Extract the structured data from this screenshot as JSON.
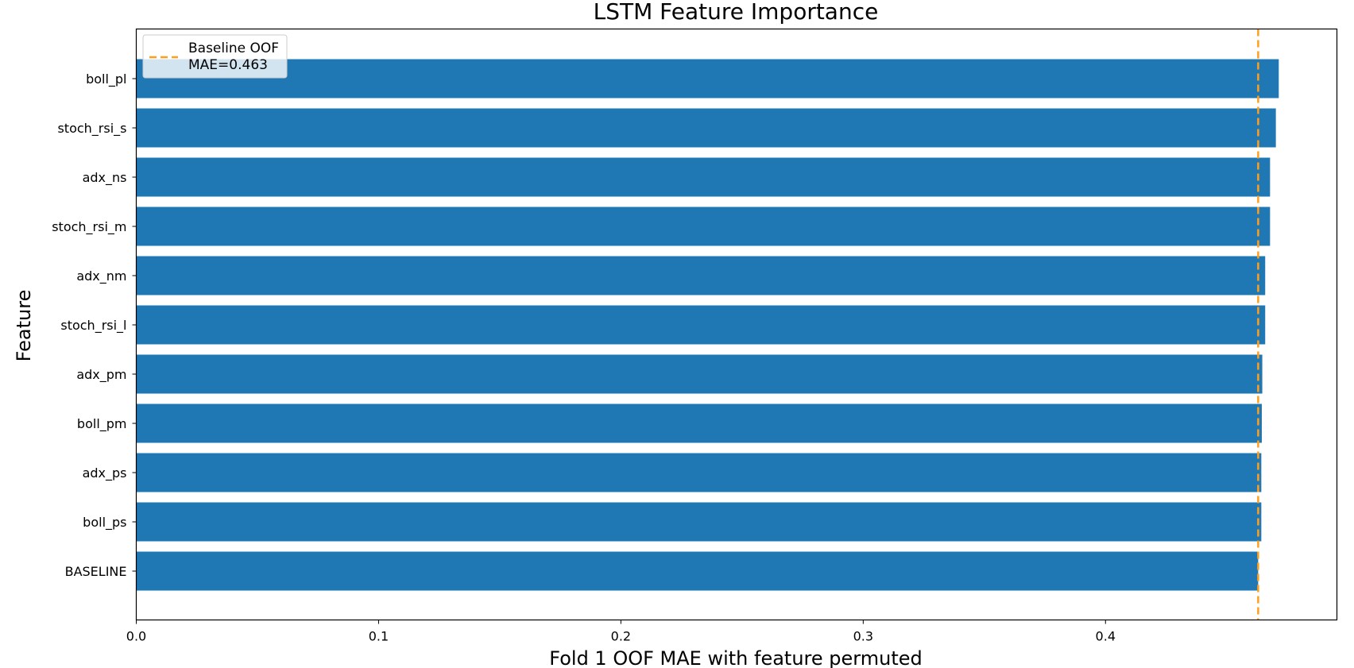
{
  "chart_data": {
    "type": "bar",
    "orientation": "horizontal",
    "title": "LSTM Feature Importance",
    "xlabel": "Fold 1 OOF MAE with feature permuted",
    "ylabel": "Feature",
    "categories": [
      "boll_pl",
      "stoch_rsi_s",
      "adx_ns",
      "stoch_rsi_m",
      "adx_nm",
      "stoch_rsi_l",
      "adx_pm",
      "boll_pm",
      "adx_ps",
      "boll_ps",
      "BASELINE"
    ],
    "values": [
      0.4715,
      0.4703,
      0.4679,
      0.4679,
      0.4659,
      0.4659,
      0.4647,
      0.4645,
      0.4643,
      0.4643,
      0.463
    ],
    "bar_color": "#1f77b4",
    "xlim": [
      0.0,
      0.4955
    ],
    "xticks": [
      0.0,
      0.1,
      0.2,
      0.3,
      0.4
    ],
    "xtick_labels": [
      "0.0",
      "0.1",
      "0.2",
      "0.3",
      "0.4"
    ],
    "baseline": {
      "value": 0.463,
      "color": "#ff9f1c",
      "style": "dashed"
    },
    "legend": {
      "placement": "top-left",
      "line1": "Baseline OOF",
      "line2": "MAE=0.463"
    },
    "grid": false
  }
}
